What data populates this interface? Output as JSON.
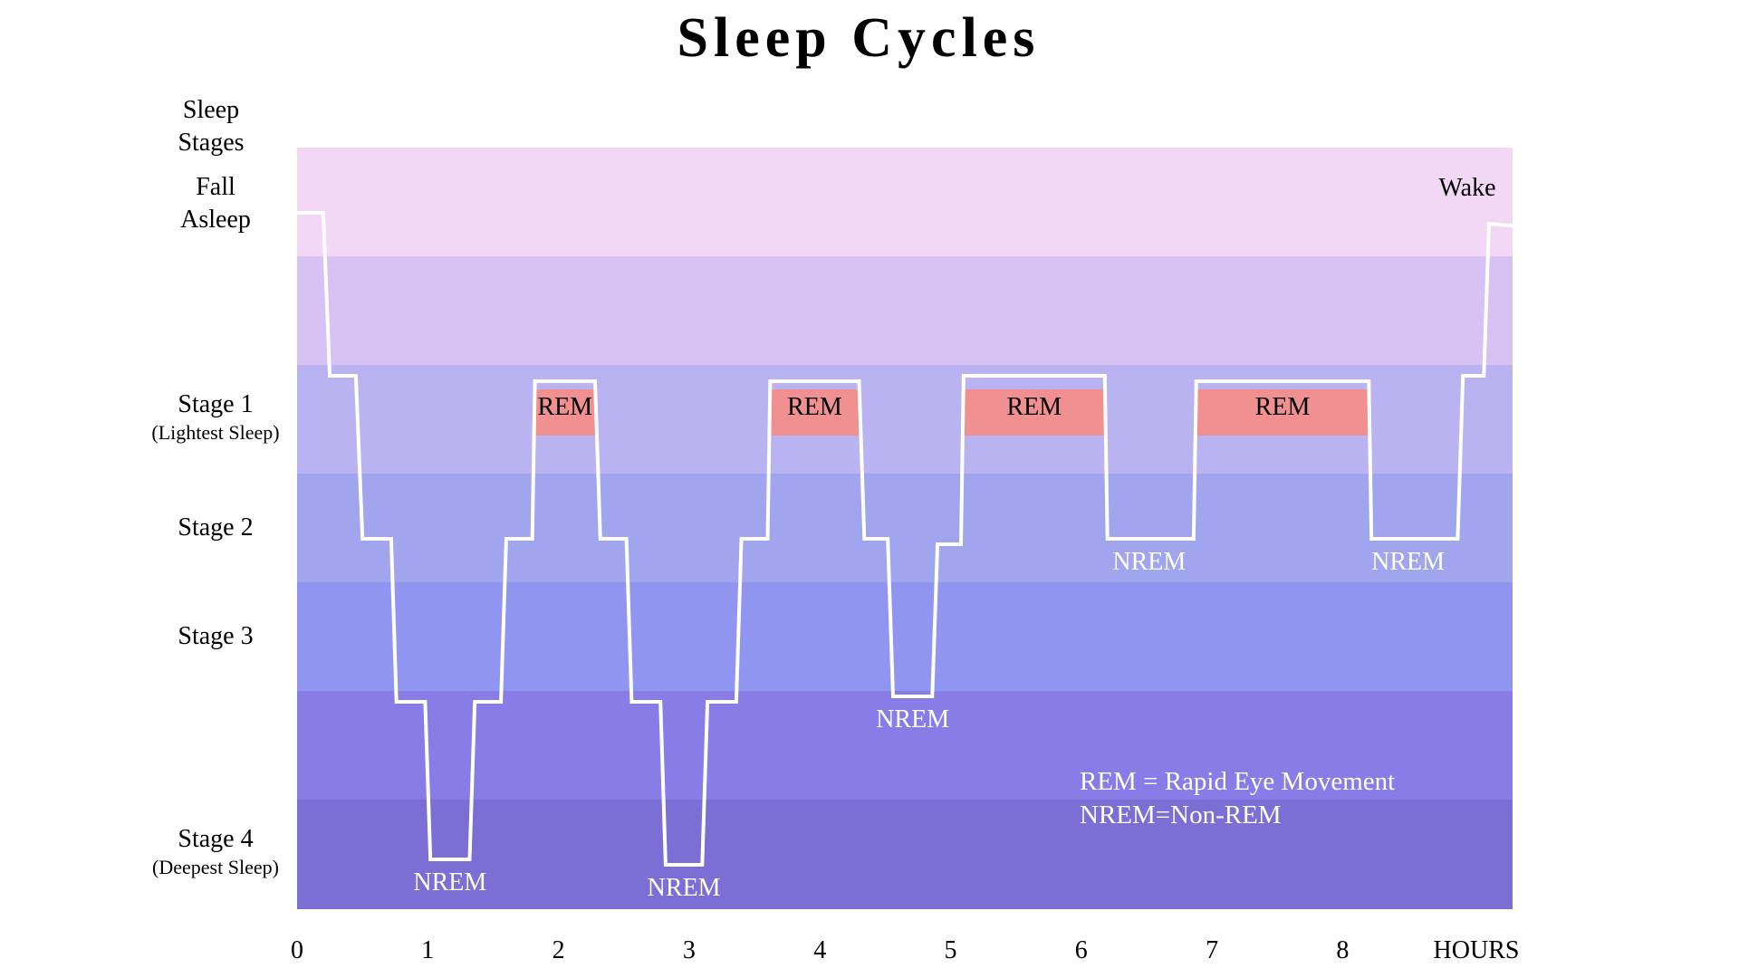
{
  "chart_data": {
    "type": "line",
    "title": "Sleep Cycles",
    "y_axis_title": [
      "Sleep",
      "Stages"
    ],
    "x_axis_unit": "HOURS",
    "x_ticks": [
      0,
      1,
      2,
      3,
      4,
      5,
      6,
      7,
      8
    ],
    "xlim": [
      0,
      9.3
    ],
    "stages": [
      {
        "label": [
          "Fall",
          "Asleep"
        ],
        "sub": "",
        "color": "#f3d8f6"
      },
      {
        "label": [
          ""
        ],
        "sub": "",
        "color": "#d6c3f4"
      },
      {
        "label": [
          "Stage 1"
        ],
        "sub": "(Lightest Sleep)",
        "color": "#b9b3f2"
      },
      {
        "label": [
          "Stage 2"
        ],
        "sub": "",
        "color": "#a0a5ee"
      },
      {
        "label": [
          "Stage 3"
        ],
        "sub": "",
        "color": "#9096f0"
      },
      {
        "label": [
          ""
        ],
        "sub": "",
        "color": "#887de6"
      },
      {
        "label": [
          "Stage 4"
        ],
        "sub": "(Deepest Sleep)",
        "color": "#7b6fd5"
      }
    ],
    "wake_label": "Wake",
    "hypnogram": [
      [
        0.0,
        0.6
      ],
      [
        0.2,
        0.6
      ],
      [
        0.25,
        2.1
      ],
      [
        0.45,
        2.1
      ],
      [
        0.5,
        3.6
      ],
      [
        0.72,
        3.6
      ],
      [
        0.76,
        5.1
      ],
      [
        0.98,
        5.1
      ],
      [
        1.02,
        6.55
      ],
      [
        1.32,
        6.55
      ],
      [
        1.36,
        5.1
      ],
      [
        1.56,
        5.1
      ],
      [
        1.6,
        3.6
      ],
      [
        1.8,
        3.6
      ],
      [
        1.82,
        2.15
      ],
      [
        2.28,
        2.15
      ],
      [
        2.32,
        3.6
      ],
      [
        2.52,
        3.6
      ],
      [
        2.56,
        5.1
      ],
      [
        2.78,
        5.1
      ],
      [
        2.82,
        6.6
      ],
      [
        3.1,
        6.6
      ],
      [
        3.14,
        5.1
      ],
      [
        3.36,
        5.1
      ],
      [
        3.4,
        3.6
      ],
      [
        3.6,
        3.6
      ],
      [
        3.62,
        2.15
      ],
      [
        4.3,
        2.15
      ],
      [
        4.34,
        3.6
      ],
      [
        4.52,
        3.6
      ],
      [
        4.56,
        5.05
      ],
      [
        4.86,
        5.05
      ],
      [
        4.9,
        3.65
      ],
      [
        5.08,
        3.65
      ],
      [
        5.1,
        2.1
      ],
      [
        6.18,
        2.1
      ],
      [
        6.2,
        3.6
      ],
      [
        6.86,
        3.6
      ],
      [
        6.88,
        2.15
      ],
      [
        8.2,
        2.15
      ],
      [
        8.22,
        3.6
      ],
      [
        8.88,
        3.6
      ],
      [
        8.92,
        2.1
      ],
      [
        9.08,
        2.1
      ],
      [
        9.12,
        0.7
      ],
      [
        9.3,
        0.72
      ]
    ],
    "rem_periods": [
      {
        "label": "REM",
        "start": 1.82,
        "end": 2.28
      },
      {
        "label": "REM",
        "start": 3.62,
        "end": 4.3
      },
      {
        "label": "REM",
        "start": 5.1,
        "end": 6.18
      },
      {
        "label": "REM",
        "start": 6.88,
        "end": 8.2
      }
    ],
    "nrem_labels": [
      {
        "label": "NREM",
        "x": 1.17,
        "y": 6.55
      },
      {
        "label": "NREM",
        "x": 2.96,
        "y": 6.6
      },
      {
        "label": "NREM",
        "x": 4.71,
        "y": 5.05
      },
      {
        "label": "NREM",
        "x": 6.52,
        "y": 3.6
      },
      {
        "label": "NREM",
        "x": 8.5,
        "y": 3.6
      }
    ],
    "rem_color": "#f09090",
    "line_color": "#ffffff",
    "legend": [
      "REM = Rapid Eye Movement",
      "NREM=Non-REM"
    ]
  }
}
